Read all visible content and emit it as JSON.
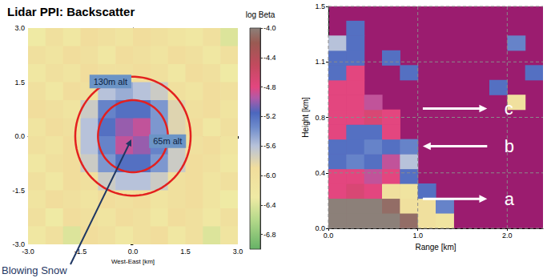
{
  "chart_data": [
    {
      "type": "heatmap",
      "title": "Lidar PPI: Backscatter",
      "x_label": "West-East [km]",
      "xlim": [
        -3,
        3
      ],
      "ylim": [
        -3,
        3
      ],
      "xticks": [
        {
          "value": -3,
          "label": "-3.0"
        },
        {
          "value": -1.5,
          "label": "-1.5"
        },
        {
          "value": 0,
          "label": "0.0"
        },
        {
          "value": 1.5,
          "label": "1.5"
        },
        {
          "value": 3,
          "label": "3.0"
        }
      ],
      "yticks": [
        {
          "value": -3,
          "label": "-3.0"
        },
        {
          "value": -1.5,
          "label": "-1.5"
        },
        {
          "value": 0,
          "label": "0.0"
        },
        {
          "value": 1.5,
          "label": "1.5"
        },
        {
          "value": 3,
          "label": "3.0"
        }
      ],
      "grid": false,
      "x_edges": [
        -3,
        -2.5,
        -2,
        -1.5,
        -1,
        -0.5,
        0,
        0.5,
        1,
        1.5,
        2,
        2.5,
        3
      ],
      "y_edges": [
        -3,
        -2.5,
        -2,
        -1.5,
        -1,
        -0.5,
        0,
        0.5,
        1,
        1.5,
        2,
        2.5,
        3
      ],
      "cells": [
        [
          -6.2,
          -6.0,
          -6.4,
          -5.9,
          -6.0,
          -6.2,
          -6.0,
          -5.9,
          -6.2,
          -6.0,
          -6.4,
          -6.1
        ],
        [
          -6.0,
          -6.3,
          -5.9,
          -6.0,
          -6.1,
          -5.9,
          -6.0,
          -6.2,
          -5.9,
          -6.0,
          -6.2,
          -6.0
        ],
        [
          -6.1,
          -5.9,
          -6.0,
          -6.1,
          -5.9,
          -6.0,
          -5.9,
          -6.1,
          -6.0,
          -5.9,
          -6.1,
          -6.3
        ],
        [
          -6.0,
          -6.2,
          -5.9,
          -6.0,
          -5.7,
          -5.6,
          -5.6,
          -5.7,
          -6.0,
          -5.9,
          -6.1,
          -6.0
        ],
        [
          -6.2,
          -6.0,
          -5.9,
          -5.7,
          -5.4,
          -5.2,
          -5.2,
          -5.4,
          -5.7,
          -5.9,
          -6.0,
          -6.2
        ],
        [
          -6.0,
          -6.1,
          -5.9,
          -5.6,
          -5.3,
          -4.9,
          -5.0,
          -5.3,
          -5.7,
          -6.0,
          -5.9,
          -6.1
        ],
        [
          -6.1,
          -5.9,
          -6.0,
          -5.6,
          -5.2,
          -5.0,
          -4.9,
          -5.4,
          -5.8,
          -5.9,
          -6.2,
          -6.0
        ],
        [
          -5.9,
          -6.0,
          -6.1,
          -5.7,
          -5.3,
          -5.2,
          -5.2,
          -5.4,
          -5.8,
          -6.0,
          -5.9,
          -6.1
        ],
        [
          -6.0,
          -6.2,
          -5.9,
          -6.0,
          -5.6,
          -5.5,
          -5.6,
          -5.7,
          -6.0,
          -6.1,
          -5.9,
          -6.0
        ],
        [
          -6.2,
          -6.0,
          -6.1,
          -5.9,
          -6.0,
          -6.0,
          -5.9,
          -6.0,
          -6.2,
          -5.9,
          -6.0,
          -6.3
        ],
        [
          -6.0,
          -6.1,
          -5.9,
          -6.0,
          -6.2,
          -5.9,
          -6.0,
          -6.1,
          -5.9,
          -6.0,
          -6.2,
          -6.0
        ],
        [
          -6.3,
          -6.0,
          -6.2,
          -5.9,
          -6.0,
          -6.1,
          -5.9,
          -6.0,
          -6.1,
          -6.2,
          -6.0,
          -6.4
        ]
      ],
      "colorbar": {
        "label": "log Beta",
        "range": [
          -7.0,
          -4.0
        ],
        "ticks": [
          {
            "value": -4.0,
            "label": "-4.0"
          },
          {
            "value": -4.4,
            "label": "-4.4"
          },
          {
            "value": -4.8,
            "label": "-4.8"
          },
          {
            "value": -5.2,
            "label": "-5.2"
          },
          {
            "value": -5.6,
            "label": "-5.6"
          },
          {
            "value": -6.0,
            "label": "-6.0"
          },
          {
            "value": -6.4,
            "label": "-6.4"
          },
          {
            "value": -6.8,
            "label": "-6.8"
          }
        ]
      },
      "rings": [
        {
          "radius": 1.0,
          "label": "65m alt"
        },
        {
          "radius": 1.65,
          "label": "130m alt"
        }
      ],
      "color": "#e3201f",
      "annotations": [
        {
          "text": "Blowing Snow"
        }
      ]
    },
    {
      "type": "heatmap",
      "x_label": "Range [km]",
      "y_label": "Height [km]",
      "xlim": [
        0,
        2.4
      ],
      "ylim": [
        0,
        1.5
      ],
      "xticks": [
        {
          "value": 0,
          "label": "0.0"
        },
        {
          "value": 1,
          "label": "1.0"
        },
        {
          "value": 2,
          "label": "2.0"
        }
      ],
      "yticks": [
        {
          "value": 0,
          "label": "0.0"
        },
        {
          "value": 0.375,
          "label": "0.4"
        },
        {
          "value": 0.75,
          "label": "0.8"
        },
        {
          "value": 1.125,
          "label": "1.1"
        },
        {
          "value": 1.5,
          "label": "1.5"
        }
      ],
      "grid": true,
      "x_edges": [
        0,
        0.2,
        0.4,
        0.6,
        0.8,
        1.0,
        1.2,
        1.4,
        1.6,
        1.8,
        2.0,
        2.2,
        2.4
      ],
      "y_edges": [
        0,
        0.1,
        0.2,
        0.3,
        0.4,
        0.5,
        0.6,
        0.7,
        0.8,
        0.9,
        1.0,
        1.1,
        1.2,
        1.3,
        1.4,
        1.5
      ],
      "cells": [
        [
          -4.0,
          -4.0,
          -4.0,
          -4.0,
          -4.1,
          -6.0,
          -6.1,
          null,
          null,
          null,
          null,
          null
        ],
        [
          -4.0,
          -4.0,
          -4.0,
          -4.1,
          -6.0,
          -6.0,
          -5.3,
          null,
          null,
          null,
          null,
          null
        ],
        [
          -4.8,
          -4.7,
          -4.8,
          -6.0,
          -6.1,
          -5.2,
          null,
          null,
          null,
          null,
          null,
          null
        ],
        [
          -4.8,
          -4.8,
          -4.9,
          -4.8,
          -5.2,
          null,
          null,
          null,
          null,
          null,
          null,
          null
        ],
        [
          -5.2,
          -5.3,
          -5.2,
          -4.9,
          -5.6,
          null,
          null,
          null,
          null,
          null,
          null,
          null
        ],
        [
          -5.2,
          -5.2,
          -5.3,
          -5.2,
          -5.3,
          null,
          null,
          null,
          null,
          null,
          null,
          null
        ],
        [
          -4.8,
          -5.2,
          -5.2,
          -4.8,
          null,
          null,
          null,
          null,
          null,
          null,
          null,
          null
        ],
        [
          -4.8,
          -4.8,
          -4.7,
          -4.8,
          null,
          null,
          null,
          null,
          null,
          null,
          null,
          null
        ],
        [
          -4.8,
          -4.8,
          -4.9,
          null,
          null,
          null,
          null,
          null,
          null,
          null,
          -6.0,
          null
        ],
        [
          -4.8,
          -4.8,
          null,
          null,
          null,
          null,
          null,
          null,
          null,
          -5.2,
          null,
          null
        ],
        [
          -5.2,
          -4.8,
          null,
          null,
          -5.2,
          null,
          null,
          null,
          null,
          null,
          null,
          -5.2
        ],
        [
          -5.2,
          -5.2,
          null,
          -5.2,
          null,
          null,
          null,
          null,
          null,
          null,
          null,
          null
        ],
        [
          -5.6,
          -5.2,
          null,
          null,
          null,
          null,
          null,
          null,
          null,
          null,
          -5.3,
          null
        ],
        [
          null,
          -5.2,
          null,
          null,
          null,
          null,
          null,
          null,
          null,
          null,
          null,
          null
        ],
        [
          null,
          null,
          null,
          null,
          null,
          null,
          null,
          null,
          null,
          null,
          null,
          null
        ]
      ],
      "annotations": [
        {
          "text": "a",
          "direction": "right"
        },
        {
          "text": "b",
          "direction": "left"
        },
        {
          "text": "c",
          "direction": "right"
        }
      ]
    }
  ]
}
